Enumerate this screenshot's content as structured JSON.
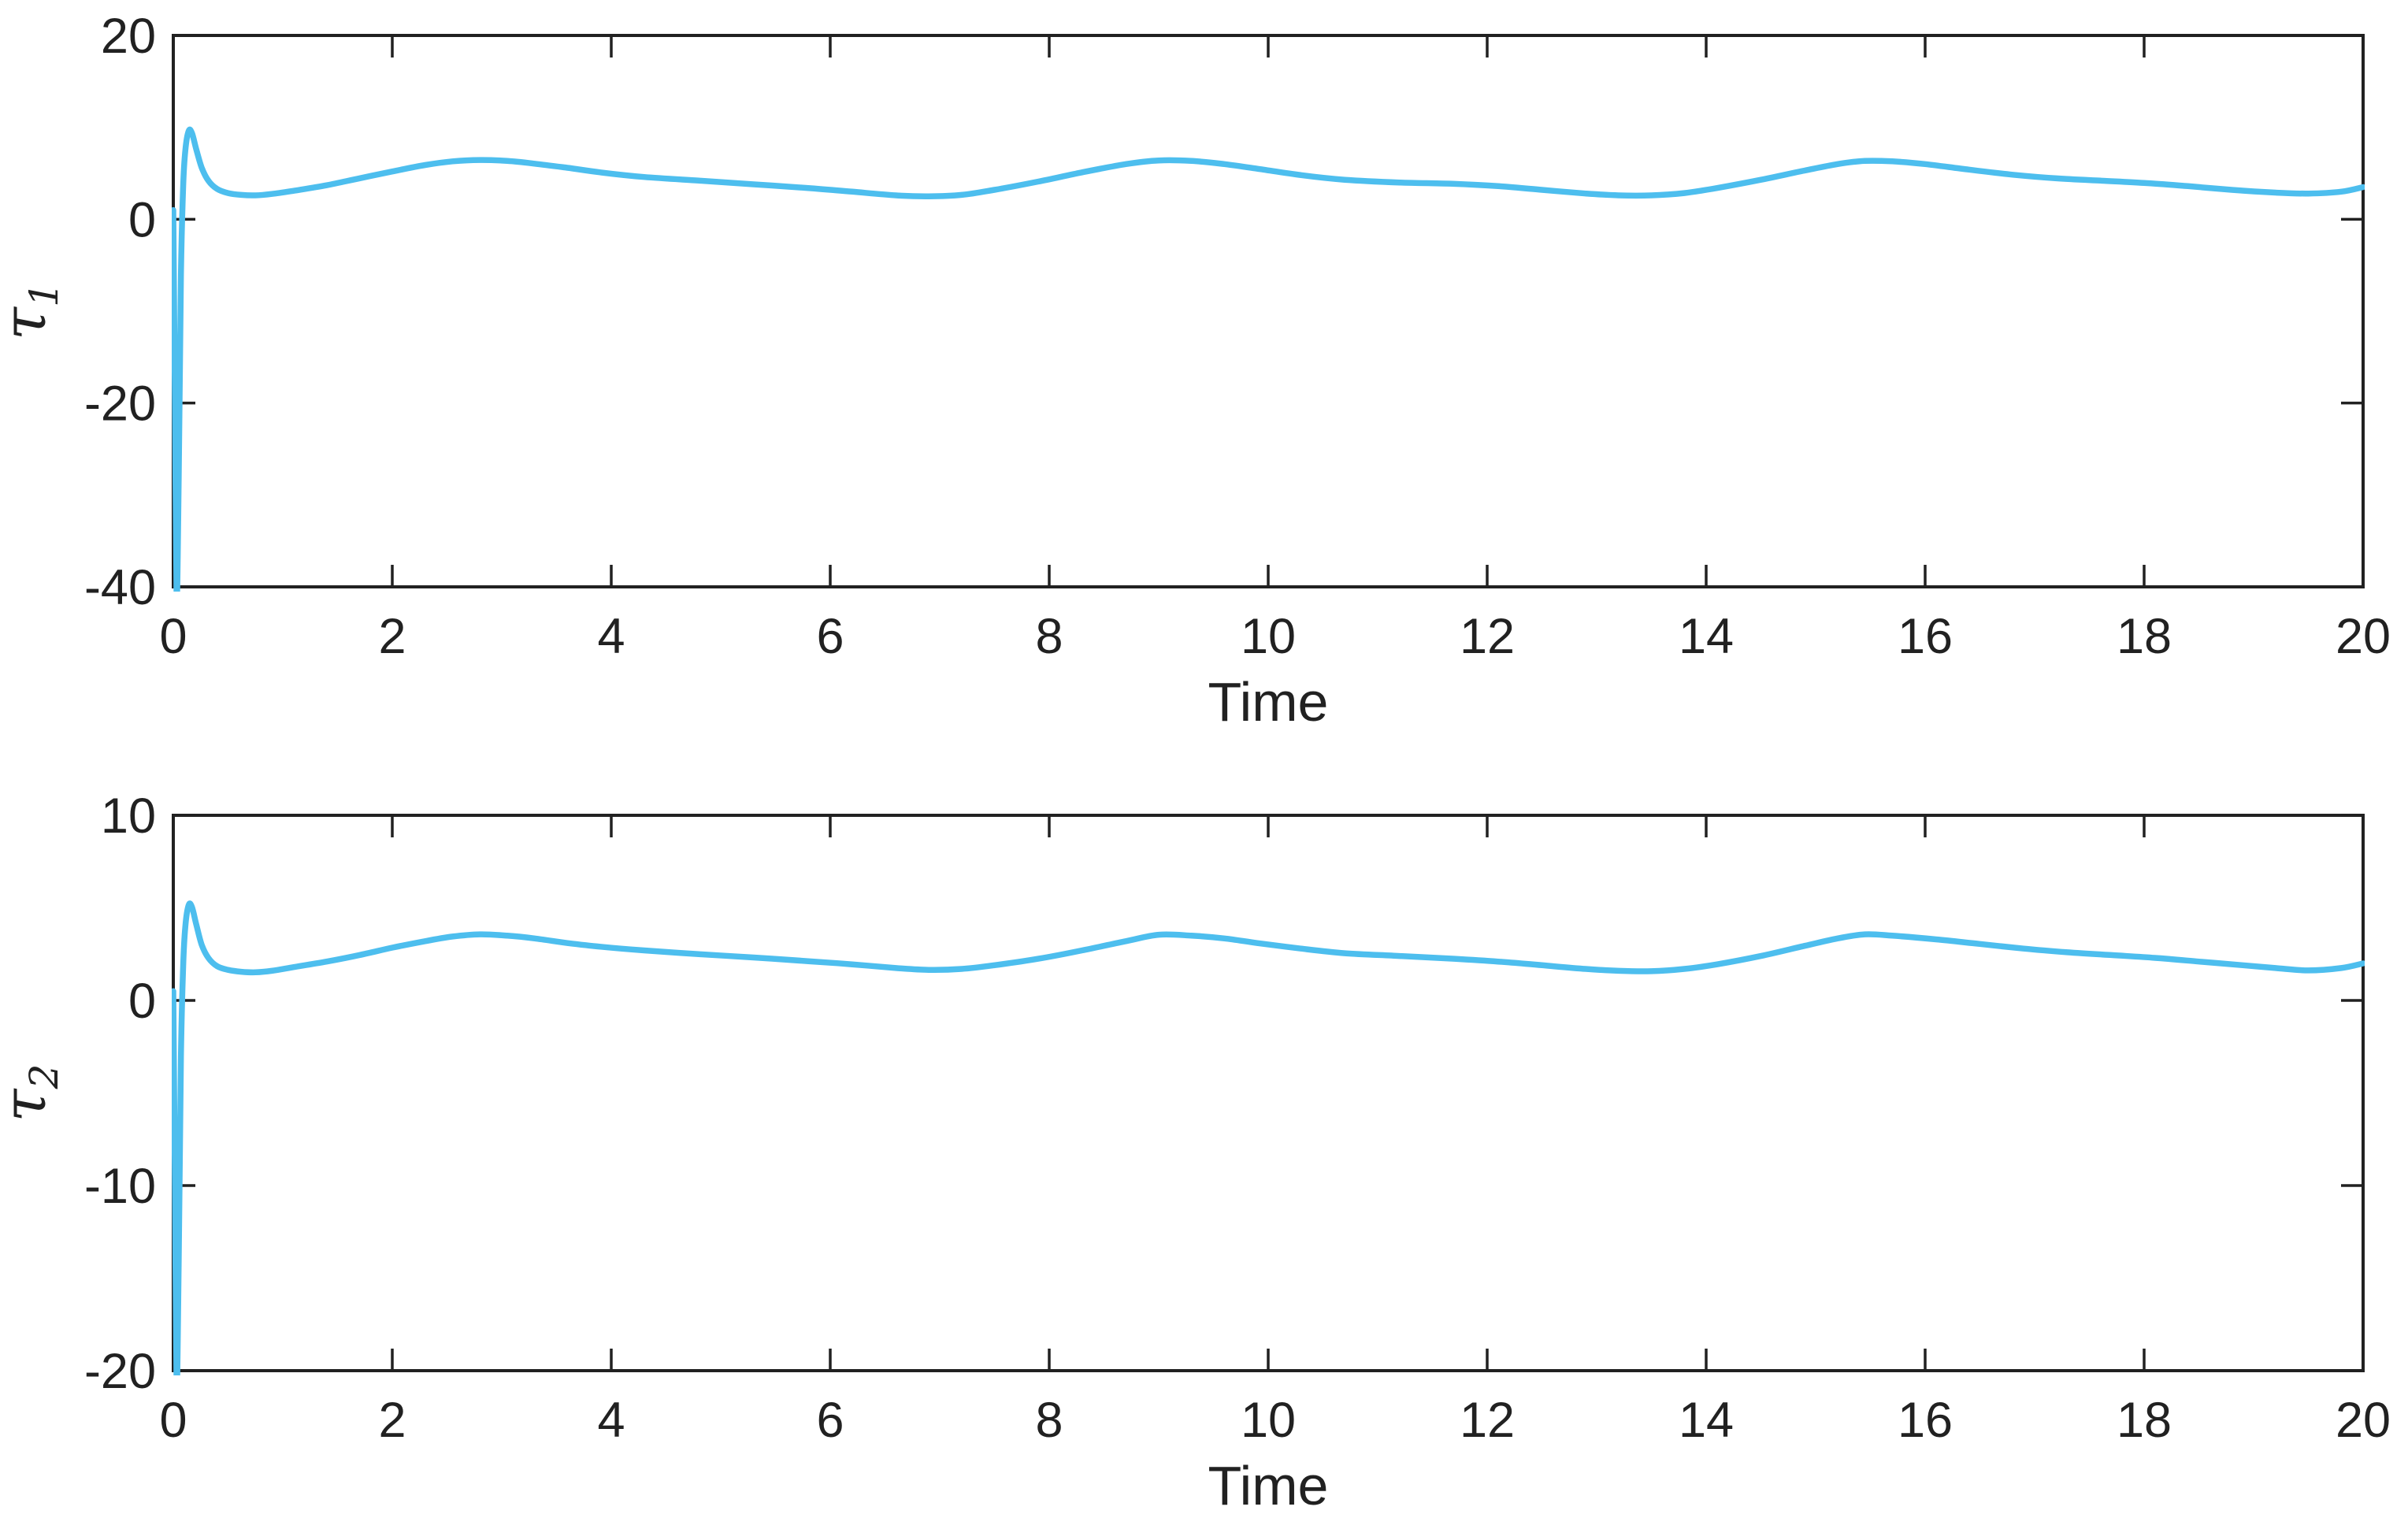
{
  "figure": {
    "background": "#ffffff",
    "axis_color": "#212121",
    "line_color": "#4DBEEE"
  },
  "chart_data": [
    {
      "type": "line",
      "title": "",
      "xlabel": "Time",
      "ylabel": "τ_1",
      "ylabel_base": "τ",
      "ylabel_sub": "1",
      "xlim": [
        0,
        20
      ],
      "ylim": [
        -40,
        20
      ],
      "xticks": [
        0,
        2,
        4,
        6,
        8,
        10,
        12,
        14,
        16,
        18,
        20
      ],
      "yticks": [
        20,
        0,
        -20,
        -40
      ],
      "grid": false,
      "legend": null,
      "line_color": "#4DBEEE",
      "line_width": 7.5,
      "series_name": "tau1",
      "points": [
        [
          0.0,
          1.0
        ],
        [
          0.015,
          -20.0
        ],
        [
          0.03,
          -41.5
        ],
        [
          0.05,
          -28.0
        ],
        [
          0.07,
          -6.0
        ],
        [
          0.09,
          3.5
        ],
        [
          0.11,
          7.5
        ],
        [
          0.14,
          9.6
        ],
        [
          0.17,
          9.4
        ],
        [
          0.21,
          7.6
        ],
        [
          0.26,
          5.6
        ],
        [
          0.32,
          4.2
        ],
        [
          0.4,
          3.3
        ],
        [
          0.5,
          2.85
        ],
        [
          0.62,
          2.65
        ],
        [
          0.75,
          2.6
        ],
        [
          0.9,
          2.75
        ],
        [
          1.1,
          3.1
        ],
        [
          1.4,
          3.7
        ],
        [
          1.7,
          4.45
        ],
        [
          2.0,
          5.2
        ],
        [
          2.3,
          5.9
        ],
        [
          2.55,
          6.3
        ],
        [
          2.8,
          6.45
        ],
        [
          3.05,
          6.35
        ],
        [
          3.3,
          6.05
        ],
        [
          3.6,
          5.6
        ],
        [
          3.9,
          5.1
        ],
        [
          4.3,
          4.6
        ],
        [
          4.8,
          4.2
        ],
        [
          5.3,
          3.8
        ],
        [
          5.8,
          3.4
        ],
        [
          6.2,
          3.0
        ],
        [
          6.6,
          2.6
        ],
        [
          6.9,
          2.5
        ],
        [
          7.2,
          2.65
        ],
        [
          7.5,
          3.2
        ],
        [
          7.9,
          4.1
        ],
        [
          8.3,
          5.1
        ],
        [
          8.7,
          6.0
        ],
        [
          9.0,
          6.4
        ],
        [
          9.3,
          6.35
        ],
        [
          9.6,
          6.0
        ],
        [
          9.9,
          5.5
        ],
        [
          10.3,
          4.8
        ],
        [
          10.7,
          4.3
        ],
        [
          11.2,
          4.0
        ],
        [
          11.7,
          3.85
        ],
        [
          12.1,
          3.6
        ],
        [
          12.5,
          3.2
        ],
        [
          12.9,
          2.8
        ],
        [
          13.2,
          2.6
        ],
        [
          13.5,
          2.6
        ],
        [
          13.8,
          2.85
        ],
        [
          14.1,
          3.4
        ],
        [
          14.5,
          4.3
        ],
        [
          14.9,
          5.3
        ],
        [
          15.2,
          6.0
        ],
        [
          15.45,
          6.35
        ],
        [
          15.7,
          6.3
        ],
        [
          16.0,
          6.0
        ],
        [
          16.4,
          5.4
        ],
        [
          16.8,
          4.85
        ],
        [
          17.2,
          4.45
        ],
        [
          17.6,
          4.2
        ],
        [
          18.0,
          3.95
        ],
        [
          18.4,
          3.6
        ],
        [
          18.8,
          3.2
        ],
        [
          19.2,
          2.9
        ],
        [
          19.5,
          2.8
        ],
        [
          19.8,
          3.0
        ],
        [
          20.0,
          3.5
        ]
      ]
    },
    {
      "type": "line",
      "title": "",
      "xlabel": "Time",
      "ylabel": "τ_2",
      "ylabel_base": "τ",
      "ylabel_sub": "2",
      "xlim": [
        0,
        20
      ],
      "ylim": [
        -20,
        10
      ],
      "xticks": [
        0,
        2,
        4,
        6,
        8,
        10,
        12,
        14,
        16,
        18,
        20
      ],
      "yticks": [
        10,
        0,
        -10,
        -20
      ],
      "grid": false,
      "legend": null,
      "line_color": "#4DBEEE",
      "line_width": 7.5,
      "series_name": "tau2",
      "points": [
        [
          0.0,
          0.5
        ],
        [
          0.015,
          -10.0
        ],
        [
          0.03,
          -21.0
        ],
        [
          0.05,
          -14.0
        ],
        [
          0.07,
          -3.0
        ],
        [
          0.09,
          1.8
        ],
        [
          0.11,
          4.0
        ],
        [
          0.14,
          5.15
        ],
        [
          0.17,
          5.05
        ],
        [
          0.21,
          4.1
        ],
        [
          0.26,
          3.0
        ],
        [
          0.32,
          2.3
        ],
        [
          0.4,
          1.85
        ],
        [
          0.5,
          1.65
        ],
        [
          0.62,
          1.55
        ],
        [
          0.75,
          1.52
        ],
        [
          0.9,
          1.6
        ],
        [
          1.1,
          1.8
        ],
        [
          1.4,
          2.1
        ],
        [
          1.7,
          2.45
        ],
        [
          2.0,
          2.85
        ],
        [
          2.3,
          3.2
        ],
        [
          2.55,
          3.45
        ],
        [
          2.8,
          3.57
        ],
        [
          3.05,
          3.5
        ],
        [
          3.3,
          3.35
        ],
        [
          3.6,
          3.1
        ],
        [
          3.9,
          2.9
        ],
        [
          4.3,
          2.7
        ],
        [
          4.8,
          2.5
        ],
        [
          5.3,
          2.32
        ],
        [
          5.8,
          2.12
        ],
        [
          6.2,
          1.95
        ],
        [
          6.6,
          1.75
        ],
        [
          6.9,
          1.65
        ],
        [
          7.2,
          1.7
        ],
        [
          7.5,
          1.9
        ],
        [
          7.9,
          2.25
        ],
        [
          8.3,
          2.7
        ],
        [
          8.7,
          3.2
        ],
        [
          9.0,
          3.55
        ],
        [
          9.3,
          3.5
        ],
        [
          9.6,
          3.35
        ],
        [
          9.9,
          3.1
        ],
        [
          10.3,
          2.8
        ],
        [
          10.7,
          2.55
        ],
        [
          11.2,
          2.4
        ],
        [
          11.7,
          2.25
        ],
        [
          12.1,
          2.1
        ],
        [
          12.5,
          1.9
        ],
        [
          12.9,
          1.7
        ],
        [
          13.2,
          1.6
        ],
        [
          13.5,
          1.58
        ],
        [
          13.8,
          1.7
        ],
        [
          14.1,
          1.95
        ],
        [
          14.5,
          2.4
        ],
        [
          14.9,
          2.95
        ],
        [
          15.2,
          3.35
        ],
        [
          15.45,
          3.57
        ],
        [
          15.7,
          3.5
        ],
        [
          16.1,
          3.3
        ],
        [
          16.5,
          3.05
        ],
        [
          16.9,
          2.8
        ],
        [
          17.3,
          2.6
        ],
        [
          17.7,
          2.45
        ],
        [
          18.1,
          2.3
        ],
        [
          18.5,
          2.1
        ],
        [
          18.9,
          1.9
        ],
        [
          19.2,
          1.75
        ],
        [
          19.5,
          1.62
        ],
        [
          19.8,
          1.75
        ],
        [
          20.0,
          2.0
        ]
      ]
    }
  ]
}
